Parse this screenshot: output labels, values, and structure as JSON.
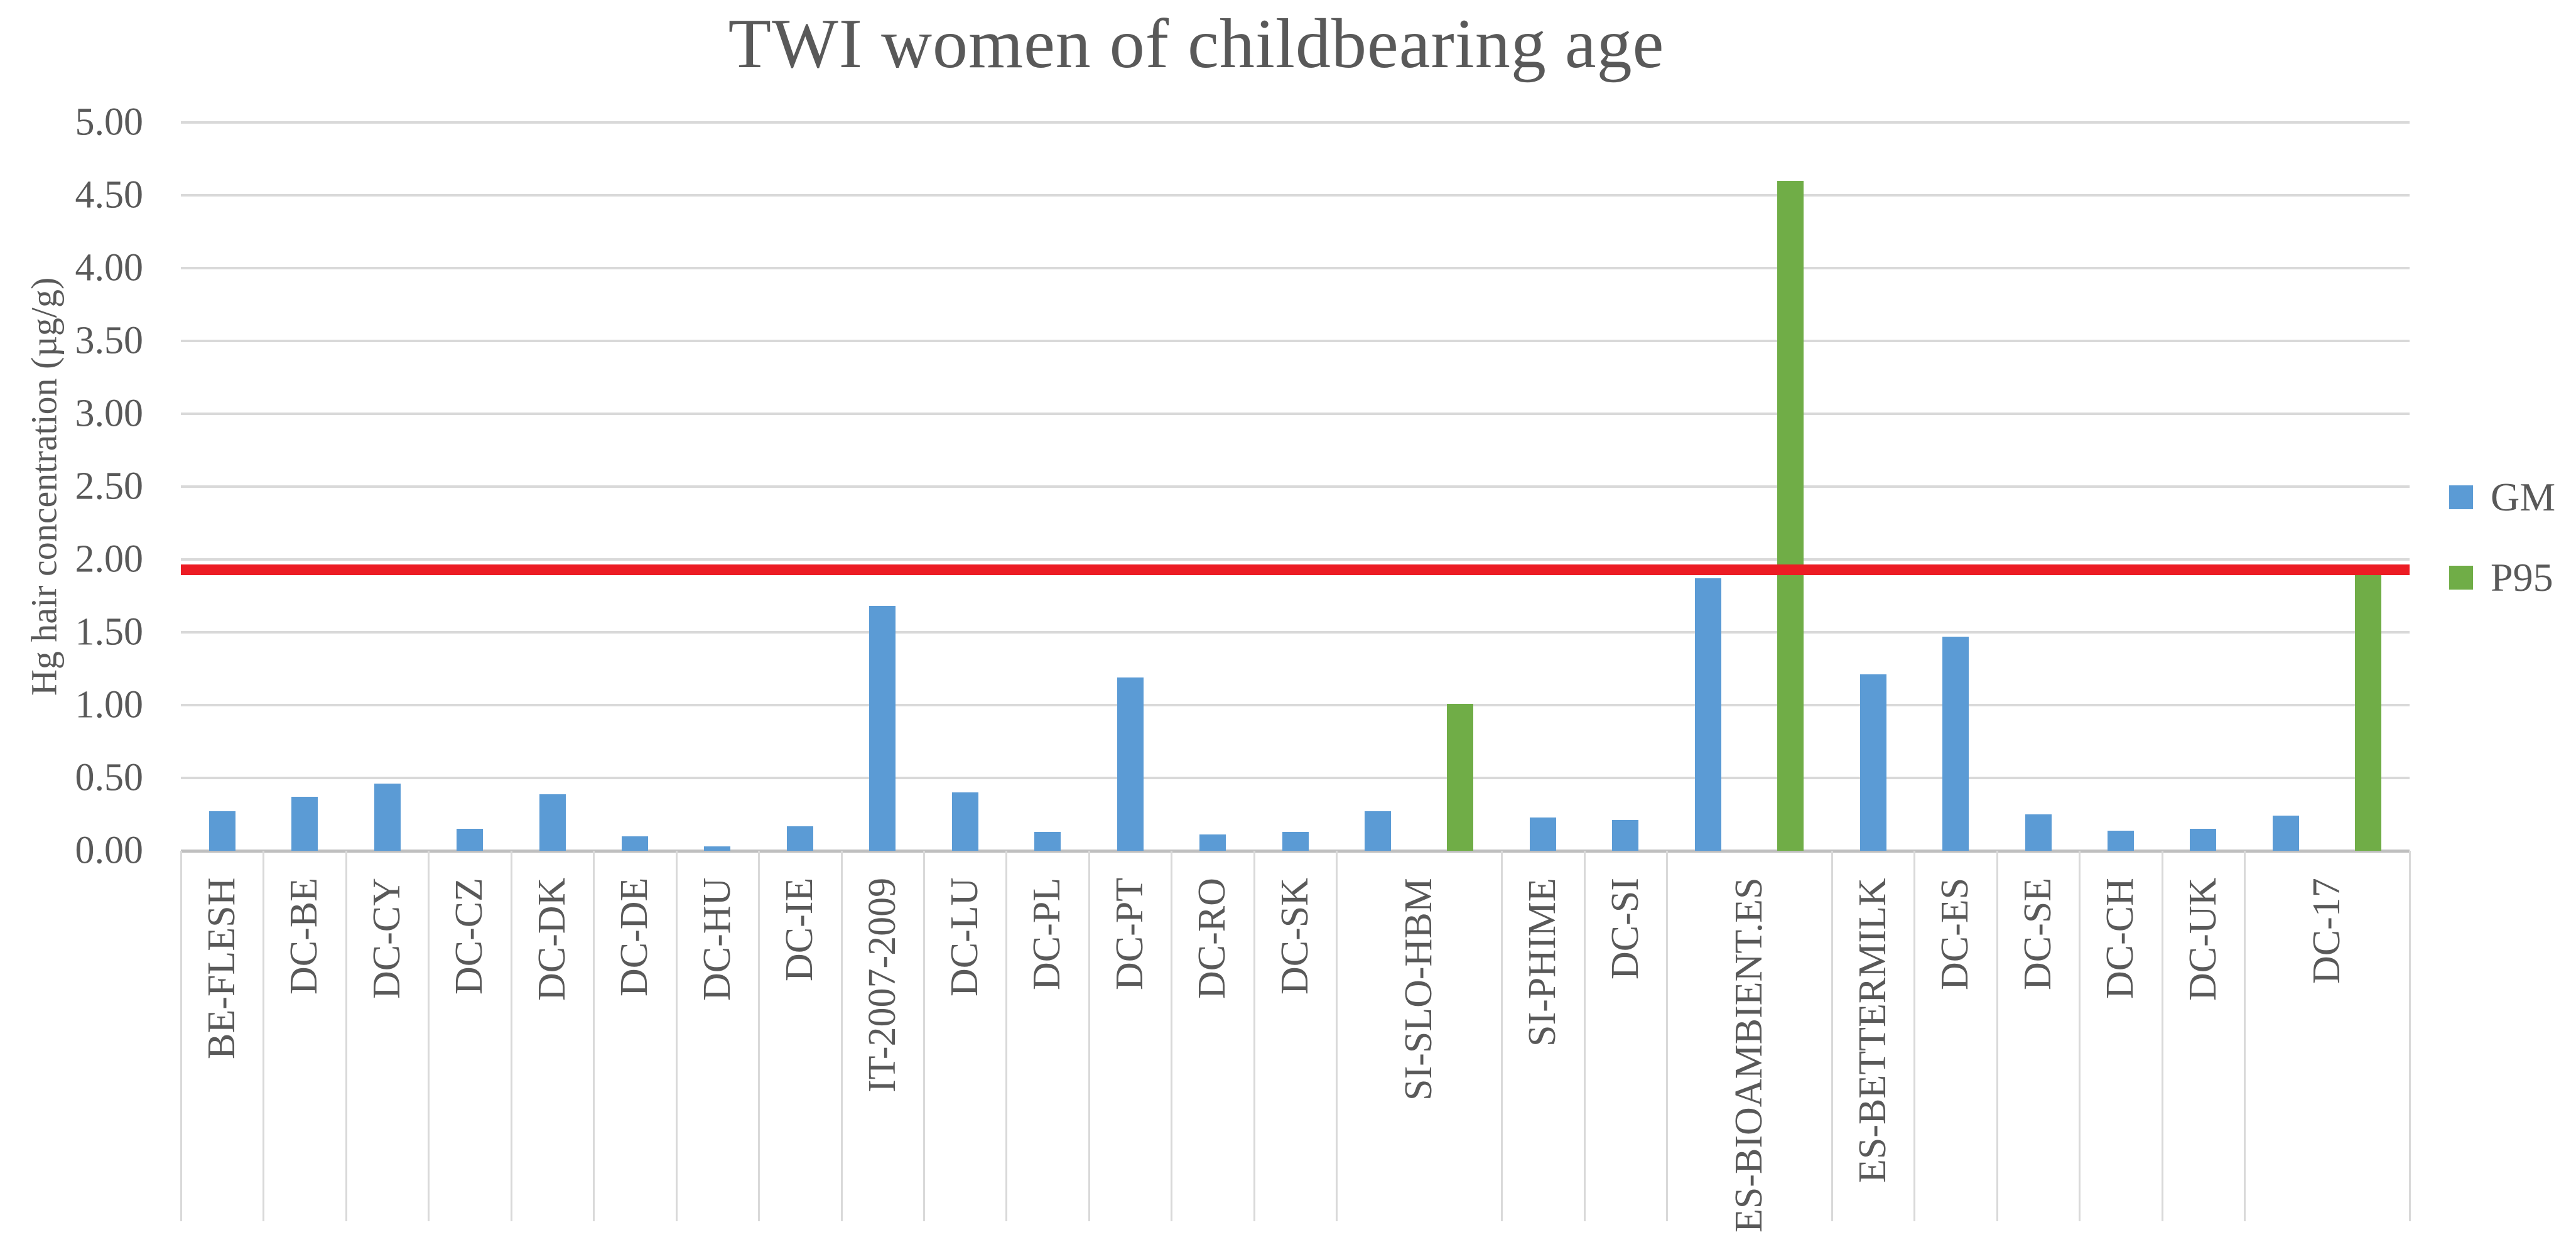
{
  "title": "TWI women of childbearing age",
  "y_axis_title": "Hg hair concentration (µg/g)",
  "legend": [
    {
      "label": "GM",
      "color": "#5B9BD5"
    },
    {
      "label": "P95",
      "color": "#70AD47"
    }
  ],
  "colors": {
    "gm_bar": "#5B9BD5",
    "p95_bar": "#70AD47",
    "threshold_line": "#EC1C24",
    "gridline": "#D9D9D9",
    "text": "#595959"
  },
  "chart_data": {
    "type": "bar",
    "title": "TWI women of childbearing age",
    "xlabel": "",
    "ylabel": "Hg hair concentration (µg/g)",
    "ylim": [
      0,
      5
    ],
    "ytick_step": 0.5,
    "ytick_format_decimals": 2,
    "grid": true,
    "legend_position": "right",
    "categories": [
      "BE-FLESH",
      "DC-BE",
      "DC-CY",
      "DC-CZ",
      "DC-DK",
      "DC-DE",
      "DC-HU",
      "DC-IE",
      "IT-2007-2009",
      "DC-LU",
      "DC-PL",
      "DC-PT",
      "DC-RO",
      "DC-SK",
      "SI-SLO-HBM",
      "SI-PHIME",
      "DC-SI",
      "ES-BIOAMBIENT.ES",
      "ES-BETTERMILK",
      "DC-ES",
      "DC-SE",
      "DC-CH",
      "DC-UK",
      "DC-17"
    ],
    "series": [
      {
        "name": "GM",
        "color": "#5B9BD5",
        "values": [
          0.27,
          0.37,
          0.46,
          0.15,
          0.39,
          0.1,
          0.03,
          0.17,
          1.68,
          0.4,
          0.13,
          1.19,
          0.11,
          0.13,
          0.27,
          0.23,
          0.21,
          1.87,
          1.21,
          1.47,
          0.25,
          0.14,
          0.15,
          0.24
        ]
      },
      {
        "name": "P95",
        "color": "#70AD47",
        "values": [
          null,
          null,
          null,
          null,
          null,
          null,
          null,
          null,
          null,
          null,
          null,
          null,
          null,
          null,
          1.01,
          null,
          null,
          4.6,
          null,
          null,
          null,
          null,
          null,
          1.9
        ]
      }
    ],
    "threshold_line": {
      "value": 1.93,
      "color": "#EC1C24"
    }
  }
}
